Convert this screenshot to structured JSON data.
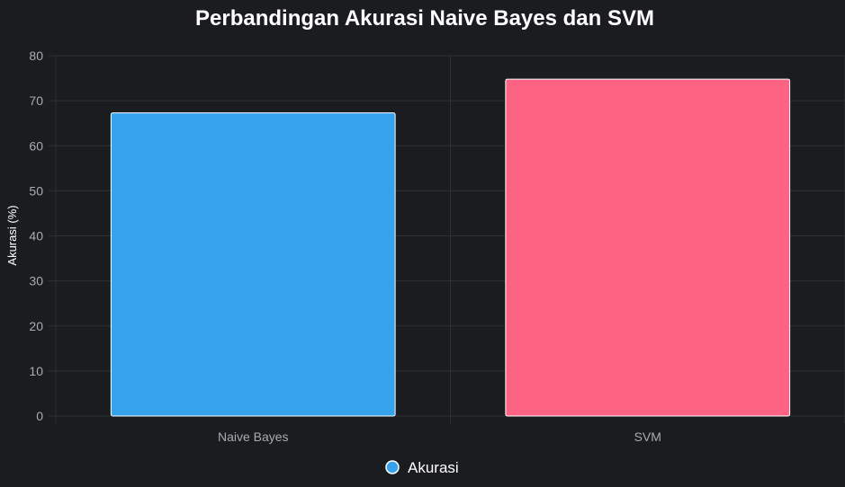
{
  "chart_data": {
    "type": "bar",
    "title": "Perbandingan Akurasi Naive Bayes dan SVM",
    "xlabel": "",
    "ylabel": "Akurasi (%)",
    "categories": [
      "Naive Bayes",
      "SVM"
    ],
    "series": [
      {
        "name": "Akurasi",
        "values": [
          67.3,
          74.8
        ],
        "colors": [
          "#36a2eb",
          "#ff6384"
        ]
      }
    ],
    "ylim": [
      0,
      80
    ],
    "yticks": [
      0,
      10,
      20,
      30,
      40,
      50,
      60,
      70,
      80
    ],
    "grid": true,
    "legend": "bottom"
  },
  "colors": {
    "background": "#1b1c20",
    "grid": "#2e3035",
    "bar_border": "#ffffff",
    "tick": "#a9abb0",
    "legend_marker": "#36a2eb"
  }
}
